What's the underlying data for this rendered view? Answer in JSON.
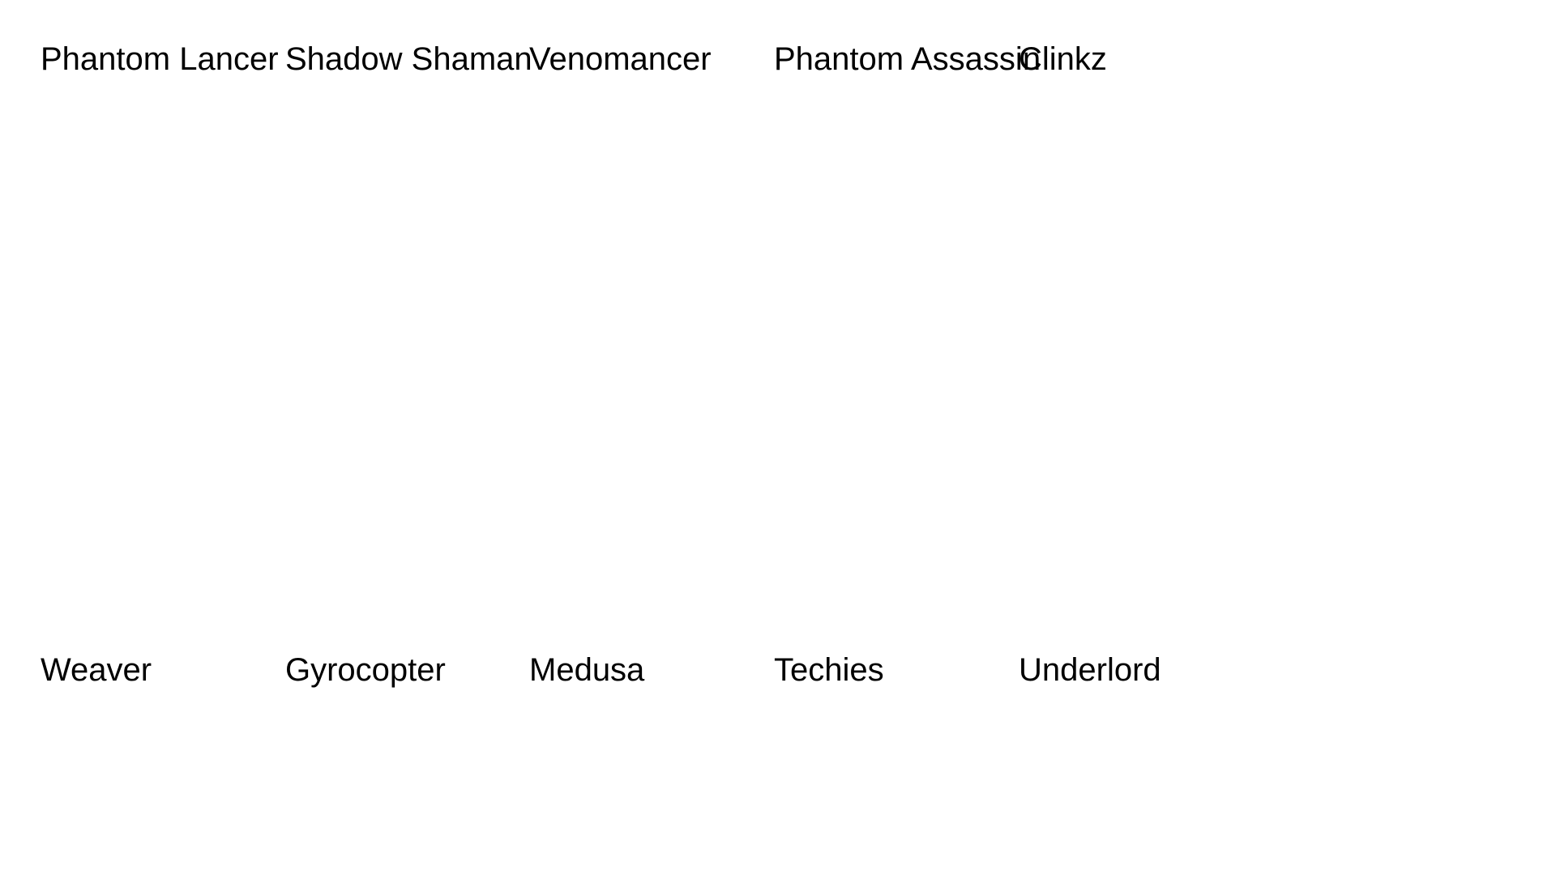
{
  "heroes": {
    "row1": [
      {
        "name": "Phantom Lancer"
      },
      {
        "name": "Shadow Shaman"
      },
      {
        "name": "Venomancer"
      },
      {
        "name": "Phantom Assassin"
      },
      {
        "name": "Clinkz"
      }
    ],
    "row2": [
      {
        "name": "Weaver"
      },
      {
        "name": "Gyrocopter"
      },
      {
        "name": "Medusa"
      },
      {
        "name": "Techies"
      },
      {
        "name": "Underlord"
      }
    ]
  }
}
